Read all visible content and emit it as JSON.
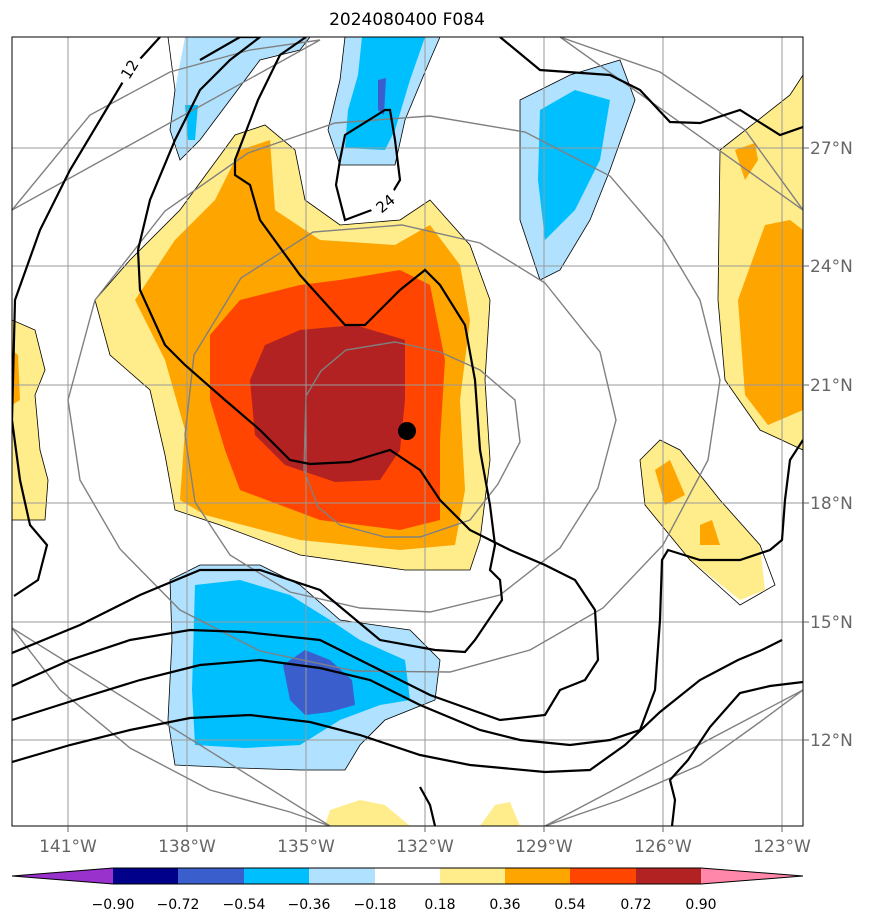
{
  "title": "2024080400 F084",
  "lon_labels": [
    "141°W",
    "138°W",
    "135°W",
    "132°W",
    "129°W",
    "126°W",
    "123°W"
  ],
  "lat_labels": [
    "27°N",
    "24°N",
    "21°N",
    "18°N",
    "15°N",
    "12°N"
  ],
  "contour_labels": [
    "12",
    "24"
  ],
  "colorbar": {
    "ticks": [
      "−0.90",
      "−0.72",
      "−0.54",
      "−0.36",
      "−0.18",
      "0.18",
      "0.36",
      "0.54",
      "0.72",
      "0.90"
    ],
    "colors": [
      "#9932cc",
      "#00008b",
      "#3a5fcd",
      "#00bfff",
      "#b0e2ff",
      "#ffffff",
      "#ffec8b",
      "#ffa500",
      "#ff4500",
      "#b22222",
      "#ff88aa"
    ]
  },
  "storm_center": {
    "lon": -131.9,
    "lat": 19.8
  },
  "colors": {
    "frame": "#000000",
    "grid": "#999999",
    "range_rings": "#808080",
    "contours": "#000000"
  }
}
